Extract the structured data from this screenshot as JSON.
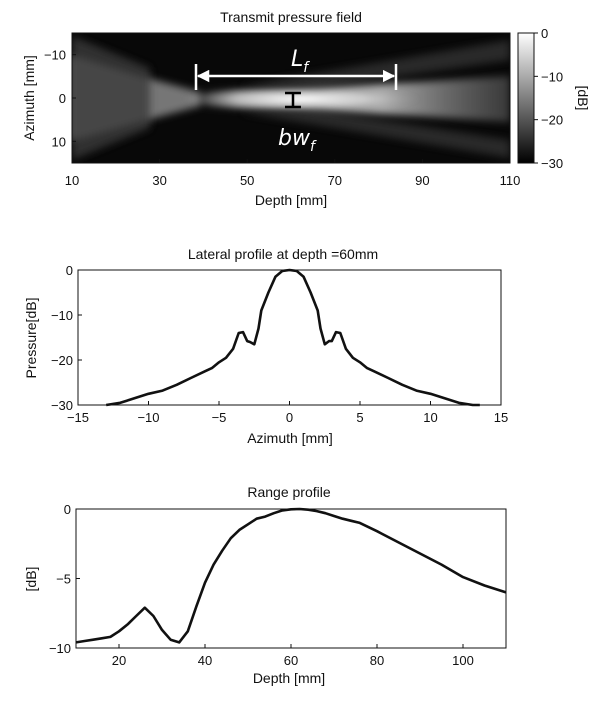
{
  "chart_data": [
    {
      "type": "heatmap",
      "title": "Transmit pressure field",
      "xlabel": "Depth [mm]",
      "ylabel": "Azimuth [mm]",
      "xlim": [
        10,
        110
      ],
      "ylim": [
        -15,
        15
      ],
      "xticks": [
        10,
        30,
        50,
        70,
        90,
        110
      ],
      "yticks": [
        -10,
        0,
        10
      ],
      "colorbar": {
        "label": "[dB]",
        "range": [
          -30,
          0
        ],
        "ticks": [
          0,
          -10,
          -20,
          -30
        ],
        "colormap": "gray"
      },
      "annotations": [
        {
          "label": "L",
          "subscript": "f",
          "from_depth": 38,
          "to_depth": 84,
          "azimuth": -7.5
        },
        {
          "label": "bw",
          "subscript": "f",
          "depth": 60,
          "azimuth_from": -1.5,
          "azimuth_to": 1.5
        }
      ],
      "focus_depth": 60
    },
    {
      "type": "line",
      "title": "Lateral profile at depth =60mm",
      "xlabel": "Azimuth [mm]",
      "ylabel": "Pressure[dB]",
      "xlim": [
        -15,
        15
      ],
      "ylim": [
        -30,
        0
      ],
      "xticks": [
        -15,
        -10,
        -5,
        0,
        5,
        10,
        15
      ],
      "yticks": [
        0,
        -10,
        -20,
        -30
      ],
      "series": [
        {
          "x": [
            -13,
            -12,
            -11,
            -10,
            -9,
            -8,
            -7,
            -6,
            -5.5,
            -5,
            -4.5,
            -4,
            -3.6,
            -3.3,
            -3.0,
            -2.8,
            -2.5,
            -2.2,
            -2,
            -1.5,
            -1,
            -0.5,
            0,
            0.5,
            1,
            1.5,
            2,
            2.2,
            2.5,
            2.8,
            3.0,
            3.3,
            3.6,
            4,
            4.5,
            5,
            5.5,
            6,
            7,
            8,
            9,
            10,
            11,
            12,
            13,
            13.5
          ],
          "y": [
            -30,
            -29.5,
            -28.5,
            -27.5,
            -26.8,
            -25.5,
            -24,
            -22.5,
            -21.8,
            -20.5,
            -19.5,
            -17.5,
            -14,
            -13.8,
            -15.8,
            -16,
            -16.5,
            -13,
            -9,
            -5,
            -1.5,
            -0.2,
            0,
            -0.2,
            -1.5,
            -5,
            -9,
            -13,
            -16.5,
            -15.8,
            -15.8,
            -13.8,
            -14,
            -17.5,
            -19.5,
            -20.5,
            -21.8,
            -22.5,
            -24,
            -25.5,
            -26.8,
            -27.5,
            -28.5,
            -29.5,
            -30,
            -30
          ]
        }
      ]
    },
    {
      "type": "line",
      "title": "Range profile",
      "xlabel": "Depth [mm]",
      "ylabel": "[dB]",
      "xlim": [
        10,
        110
      ],
      "ylim": [
        -10,
        0
      ],
      "xticks": [
        20,
        40,
        60,
        80,
        100
      ],
      "yticks": [
        0,
        -5,
        -10
      ],
      "series": [
        {
          "x": [
            10,
            12,
            14,
            16,
            18,
            20,
            22,
            24,
            26,
            28,
            30,
            32,
            34,
            36,
            38,
            40,
            42,
            44,
            46,
            48,
            50,
            52,
            54,
            56,
            58,
            60,
            62,
            64,
            66,
            68,
            70,
            72,
            74,
            76,
            80,
            85,
            90,
            95,
            100,
            105,
            110
          ],
          "y": [
            -9.6,
            -9.5,
            -9.4,
            -9.3,
            -9.2,
            -8.8,
            -8.3,
            -7.7,
            -7.1,
            -7.7,
            -8.7,
            -9.4,
            -9.6,
            -8.8,
            -7.0,
            -5.3,
            -4.0,
            -3.0,
            -2.1,
            -1.5,
            -1.1,
            -0.7,
            -0.55,
            -0.3,
            -0.1,
            -0.02,
            0,
            -0.05,
            -0.15,
            -0.3,
            -0.5,
            -0.7,
            -0.85,
            -1.0,
            -1.6,
            -2.4,
            -3.2,
            -4.0,
            -4.9,
            -5.5,
            -6.0
          ]
        }
      ]
    }
  ]
}
